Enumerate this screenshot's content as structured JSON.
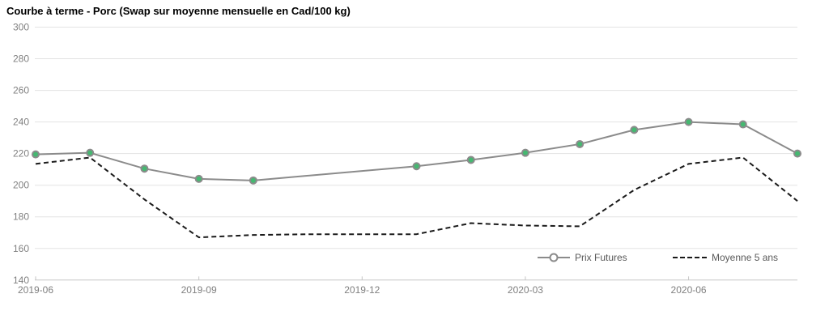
{
  "colors": {
    "background": "#ffffff",
    "grid": "#e3e3e3",
    "axis": "#c6c6c6",
    "tick_text": "#808080",
    "title_text": "#000000",
    "legend_text": "#595959",
    "futures_line": "#8b8b8b",
    "futures_marker_fill": "#45b871",
    "average_line": "#1a1a1a"
  },
  "chart_data": {
    "type": "line",
    "title": "Courbe à terme - Porc (Swap sur moyenne mensuelle en Cad/100 kg)",
    "xlabel": "",
    "ylabel": "",
    "x": [
      "2019-06",
      "2019-07",
      "2019-08",
      "2019-09",
      "2019-10",
      "2019-11",
      "2019-12",
      "2020-01",
      "2020-02",
      "2020-03",
      "2020-04",
      "2020-05",
      "2020-06",
      "2020-07",
      "2020-08"
    ],
    "x_tick_labels": [
      "2019-06",
      "2019-09",
      "2019-12",
      "2020-03",
      "2020-06"
    ],
    "y_ticks": [
      140,
      160,
      180,
      200,
      220,
      240,
      260,
      280,
      300
    ],
    "ylim": [
      140,
      300
    ],
    "grid": "horizontal",
    "legend_position": "inside-bottom-right",
    "series": [
      {
        "name": "Prix Futures",
        "style": "solid",
        "color": "#8b8b8b",
        "marker": {
          "shape": "circle",
          "fill": "#45b871",
          "stroke": "#8b8b8b"
        },
        "values": [
          219.5,
          220.5,
          210.5,
          204,
          203,
          null,
          null,
          212,
          216,
          220.5,
          226,
          235,
          240,
          238.5,
          220
        ]
      },
      {
        "name": "Moyenne 5 ans",
        "style": "dashed",
        "color": "#1a1a1a",
        "marker": null,
        "values": [
          213.5,
          217.5,
          191,
          167,
          168.5,
          169,
          169,
          169,
          176,
          174.5,
          174,
          197,
          213.5,
          217.5,
          190
        ]
      }
    ]
  }
}
